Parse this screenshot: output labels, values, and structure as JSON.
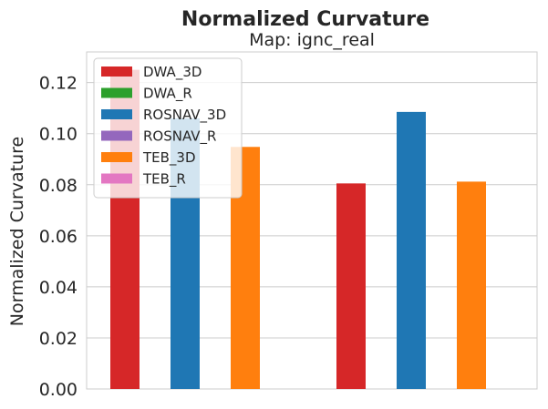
{
  "chart_data": {
    "type": "bar",
    "title": "Normalized Curvature",
    "subtitle": "Map: ignc_real",
    "ylabel": "Normalized Curvature",
    "xlabel": "",
    "ylim": [
      0,
      0.132
    ],
    "yticks": [
      "0.00",
      "0.02",
      "0.04",
      "0.06",
      "0.08",
      "0.10",
      "0.12"
    ],
    "ytick_values": [
      0,
      0.02,
      0.04,
      0.06,
      0.08,
      0.1,
      0.12
    ],
    "grid": true,
    "legend_position": "top-left",
    "groups": 2,
    "series": [
      {
        "name": "DWA_3D",
        "color": "#d62728",
        "values": [
          0.125,
          0.0805
        ]
      },
      {
        "name": "DWA_R",
        "color": "#2ca02c",
        "values": [
          null,
          null
        ]
      },
      {
        "name": "ROSNAV_3D",
        "color": "#1f77b4",
        "values": [
          0.106,
          0.1085
        ]
      },
      {
        "name": "ROSNAV_R",
        "color": "#9467bd",
        "values": [
          null,
          null
        ]
      },
      {
        "name": "TEB_3D",
        "color": "#ff7f0e",
        "values": [
          0.0948,
          0.0812
        ]
      },
      {
        "name": "TEB_R",
        "color": "#e377c2",
        "values": [
          null,
          null
        ]
      }
    ]
  }
}
